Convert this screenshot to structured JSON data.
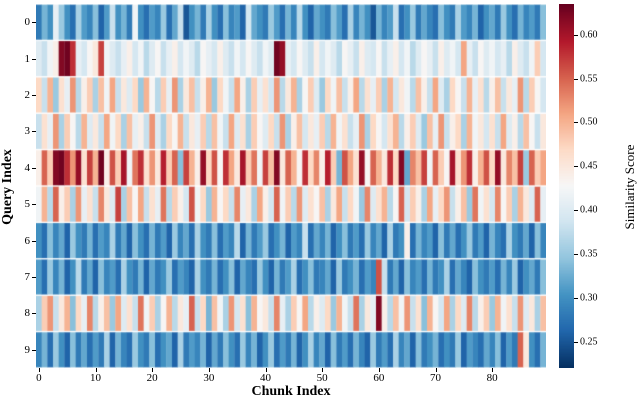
{
  "chart_data": {
    "type": "heatmap",
    "title": "",
    "xlabel": "Chunk Index",
    "ylabel": "Query Index",
    "colorbar_label": "Similarity Score",
    "colormap": "RdBu_r",
    "vmin": 0.22,
    "vmax": 0.635,
    "x_range": [
      0,
      89
    ],
    "y_range": [
      0,
      9
    ],
    "x_ticks": [
      0,
      10,
      20,
      30,
      40,
      50,
      60,
      70,
      80
    ],
    "y_ticks": [
      0,
      1,
      2,
      3,
      4,
      5,
      6,
      7,
      8,
      9
    ],
    "colorbar_ticks": [
      0.6,
      0.55,
      0.5,
      0.45,
      0.4,
      0.35,
      0.3,
      0.25
    ],
    "rows": [
      [
        0.28,
        0.33,
        0.3,
        0.41,
        0.35,
        0.3,
        0.27,
        0.36,
        0.31,
        0.29,
        0.34,
        0.26,
        0.31,
        0.38,
        0.3,
        0.33,
        0.28,
        0.42,
        0.3,
        0.27,
        0.31,
        0.29,
        0.35,
        0.27,
        0.32,
        0.38,
        0.25,
        0.3,
        0.33,
        0.28,
        0.36,
        0.3,
        0.27,
        0.34,
        0.29,
        0.31,
        0.26,
        0.39,
        0.32,
        0.3,
        0.28,
        0.35,
        0.31,
        0.27,
        0.33,
        0.29,
        0.37,
        0.3,
        0.26,
        0.32,
        0.3,
        0.28,
        0.34,
        0.31,
        0.27,
        0.36,
        0.29,
        0.33,
        0.3,
        0.25,
        0.33,
        0.29,
        0.31,
        0.38,
        0.27,
        0.3,
        0.35,
        0.28,
        0.32,
        0.29,
        0.27,
        0.34,
        0.3,
        0.28,
        0.36,
        0.31,
        0.29,
        0.33,
        0.26,
        0.3,
        0.32,
        0.28,
        0.35,
        0.3,
        0.27,
        0.33,
        0.29,
        0.31,
        0.28,
        0.34
      ],
      [
        0.4,
        0.38,
        0.42,
        0.44,
        0.62,
        0.63,
        0.58,
        0.41,
        0.39,
        0.43,
        0.45,
        0.57,
        0.42,
        0.4,
        0.38,
        0.41,
        0.44,
        0.39,
        0.42,
        0.37,
        0.4,
        0.43,
        0.38,
        0.41,
        0.44,
        0.39,
        0.42,
        0.4,
        0.37,
        0.43,
        0.41,
        0.39,
        0.44,
        0.4,
        0.38,
        0.42,
        0.39,
        0.43,
        0.4,
        0.38,
        0.42,
        0.4,
        0.63,
        0.61,
        0.41,
        0.39,
        0.43,
        0.4,
        0.38,
        0.44,
        0.39,
        0.42,
        0.4,
        0.37,
        0.43,
        0.41,
        0.38,
        0.44,
        0.4,
        0.39,
        0.43,
        0.38,
        0.41,
        0.44,
        0.39,
        0.42,
        0.37,
        0.4,
        0.43,
        0.41,
        0.38,
        0.44,
        0.4,
        0.42,
        0.39,
        0.51,
        0.41,
        0.38,
        0.43,
        0.4,
        0.42,
        0.39,
        0.41,
        0.37,
        0.44,
        0.4,
        0.38,
        0.42,
        0.48,
        0.39
      ],
      [
        0.47,
        0.38,
        0.5,
        0.35,
        0.46,
        0.41,
        0.52,
        0.37,
        0.44,
        0.48,
        0.36,
        0.49,
        0.42,
        0.51,
        0.38,
        0.45,
        0.4,
        0.47,
        0.35,
        0.5,
        0.43,
        0.37,
        0.48,
        0.41,
        0.52,
        0.36,
        0.45,
        0.49,
        0.38,
        0.44,
        0.5,
        0.35,
        0.47,
        0.42,
        0.38,
        0.51,
        0.44,
        0.36,
        0.48,
        0.41,
        0.46,
        0.39,
        0.52,
        0.37,
        0.45,
        0.5,
        0.36,
        0.43,
        0.48,
        0.4,
        0.35,
        0.47,
        0.42,
        0.49,
        0.38,
        0.44,
        0.51,
        0.37,
        0.46,
        0.41,
        0.48,
        0.36,
        0.5,
        0.39,
        0.45,
        0.42,
        0.37,
        0.49,
        0.44,
        0.38,
        0.51,
        0.4,
        0.36,
        0.47,
        0.43,
        0.38,
        0.5,
        0.41,
        0.46,
        0.37,
        0.44,
        0.49,
        0.38,
        0.45,
        0.41,
        0.52,
        0.37,
        0.48,
        0.43,
        0.39
      ],
      [
        0.38,
        0.46,
        0.41,
        0.52,
        0.36,
        0.48,
        0.43,
        0.37,
        0.5,
        0.4,
        0.45,
        0.38,
        0.51,
        0.42,
        0.47,
        0.36,
        0.49,
        0.41,
        0.44,
        0.38,
        0.52,
        0.4,
        0.36,
        0.47,
        0.43,
        0.5,
        0.38,
        0.45,
        0.41,
        0.48,
        0.37,
        0.49,
        0.42,
        0.38,
        0.51,
        0.4,
        0.46,
        0.36,
        0.48,
        0.43,
        0.4,
        0.47,
        0.38,
        0.52,
        0.36,
        0.44,
        0.49,
        0.39,
        0.45,
        0.41,
        0.48,
        0.37,
        0.5,
        0.42,
        0.46,
        0.38,
        0.41,
        0.52,
        0.36,
        0.47,
        0.43,
        0.39,
        0.46,
        0.5,
        0.37,
        0.44,
        0.48,
        0.4,
        0.35,
        0.49,
        0.41,
        0.52,
        0.38,
        0.44,
        0.47,
        0.36,
        0.5,
        0.42,
        0.45,
        0.39,
        0.46,
        0.38,
        0.51,
        0.4,
        0.44,
        0.37,
        0.49,
        0.43,
        0.38,
        0.45
      ],
      [
        0.44,
        0.55,
        0.48,
        0.62,
        0.63,
        0.58,
        0.52,
        0.61,
        0.46,
        0.57,
        0.5,
        0.63,
        0.44,
        0.56,
        0.48,
        0.6,
        0.42,
        0.54,
        0.58,
        0.46,
        0.52,
        0.45,
        0.59,
        0.48,
        0.55,
        0.34,
        0.57,
        0.5,
        0.44,
        0.61,
        0.47,
        0.56,
        0.43,
        0.58,
        0.51,
        0.45,
        0.6,
        0.48,
        0.54,
        0.42,
        0.57,
        0.49,
        0.62,
        0.45,
        0.55,
        0.5,
        0.43,
        0.58,
        0.47,
        0.53,
        0.44,
        0.59,
        0.48,
        0.33,
        0.56,
        0.51,
        0.46,
        0.61,
        0.43,
        0.55,
        0.5,
        0.45,
        0.58,
        0.47,
        0.62,
        0.32,
        0.53,
        0.49,
        0.57,
        0.42,
        0.55,
        0.48,
        0.43,
        0.6,
        0.46,
        0.52,
        0.58,
        0.44,
        0.5,
        0.56,
        0.47,
        0.61,
        0.45,
        0.53,
        0.49,
        0.57,
        0.35,
        0.55,
        0.48,
        0.51
      ],
      [
        0.42,
        0.5,
        0.37,
        0.55,
        0.44,
        0.48,
        0.36,
        0.52,
        0.41,
        0.46,
        0.38,
        0.53,
        0.45,
        0.4,
        0.57,
        0.36,
        0.49,
        0.43,
        0.51,
        0.38,
        0.46,
        0.41,
        0.54,
        0.37,
        0.48,
        0.44,
        0.39,
        0.56,
        0.42,
        0.47,
        0.35,
        0.5,
        0.43,
        0.47,
        0.38,
        0.53,
        0.41,
        0.45,
        0.36,
        0.51,
        0.44,
        0.39,
        0.55,
        0.42,
        0.48,
        0.37,
        0.52,
        0.4,
        0.46,
        0.43,
        0.49,
        0.36,
        0.45,
        0.51,
        0.38,
        0.47,
        0.42,
        0.35,
        0.53,
        0.4,
        0.46,
        0.5,
        0.37,
        0.43,
        0.55,
        0.39,
        0.48,
        0.44,
        0.36,
        0.51,
        0.41,
        0.47,
        0.52,
        0.38,
        0.44,
        0.49,
        0.35,
        0.54,
        0.42,
        0.46,
        0.39,
        0.53,
        0.43,
        0.48,
        0.36,
        0.5,
        0.45,
        0.4,
        0.55,
        0.41
      ],
      [
        0.3,
        0.27,
        0.34,
        0.29,
        0.32,
        0.26,
        0.35,
        0.3,
        0.28,
        0.33,
        0.27,
        0.31,
        0.29,
        0.36,
        0.28,
        0.32,
        0.26,
        0.34,
        0.3,
        0.27,
        0.33,
        0.28,
        0.31,
        0.26,
        0.35,
        0.29,
        0.32,
        0.27,
        0.36,
        0.3,
        0.28,
        0.34,
        0.27,
        0.31,
        0.29,
        0.37,
        0.26,
        0.33,
        0.28,
        0.31,
        0.35,
        0.27,
        0.3,
        0.33,
        0.26,
        0.31,
        0.29,
        0.38,
        0.27,
        0.32,
        0.29,
        0.33,
        0.26,
        0.3,
        0.34,
        0.28,
        0.31,
        0.27,
        0.35,
        0.29,
        0.32,
        0.26,
        0.36,
        0.28,
        0.3,
        0.44,
        0.27,
        0.33,
        0.29,
        0.31,
        0.26,
        0.34,
        0.28,
        0.32,
        0.27,
        0.3,
        0.35,
        0.28,
        0.31,
        0.26,
        0.33,
        0.29,
        0.27,
        0.36,
        0.3,
        0.28,
        0.32,
        0.26,
        0.34,
        0.29
      ],
      [
        0.31,
        0.27,
        0.35,
        0.29,
        0.33,
        0.26,
        0.3,
        0.37,
        0.28,
        0.32,
        0.26,
        0.34,
        0.29,
        0.31,
        0.27,
        0.36,
        0.3,
        0.28,
        0.33,
        0.26,
        0.32,
        0.28,
        0.3,
        0.35,
        0.27,
        0.31,
        0.29,
        0.26,
        0.36,
        0.3,
        0.28,
        0.33,
        0.27,
        0.3,
        0.34,
        0.26,
        0.32,
        0.29,
        0.27,
        0.35,
        0.3,
        0.26,
        0.33,
        0.28,
        0.31,
        0.36,
        0.27,
        0.3,
        0.34,
        0.28,
        0.29,
        0.32,
        0.26,
        0.35,
        0.28,
        0.3,
        0.33,
        0.27,
        0.31,
        0.29,
        0.56,
        0.38,
        0.28,
        0.32,
        0.26,
        0.34,
        0.29,
        0.31,
        0.27,
        0.33,
        0.28,
        0.3,
        0.36,
        0.27,
        0.32,
        0.29,
        0.26,
        0.34,
        0.3,
        0.28,
        0.31,
        0.27,
        0.33,
        0.29,
        0.35,
        0.26,
        0.3,
        0.32,
        0.28,
        0.34
      ],
      [
        0.36,
        0.48,
        0.52,
        0.38,
        0.45,
        0.5,
        0.34,
        0.47,
        0.41,
        0.53,
        0.37,
        0.44,
        0.49,
        0.35,
        0.51,
        0.4,
        0.46,
        0.38,
        0.54,
        0.42,
        0.48,
        0.36,
        0.43,
        0.5,
        0.37,
        0.45,
        0.41,
        0.55,
        0.38,
        0.47,
        0.33,
        0.49,
        0.42,
        0.36,
        0.52,
        0.39,
        0.46,
        0.34,
        0.5,
        0.43,
        0.45,
        0.38,
        0.53,
        0.41,
        0.36,
        0.48,
        0.43,
        0.51,
        0.37,
        0.44,
        0.4,
        0.47,
        0.35,
        0.5,
        0.42,
        0.38,
        0.54,
        0.36,
        0.45,
        0.41,
        0.62,
        0.44,
        0.37,
        0.49,
        0.42,
        0.52,
        0.38,
        0.46,
        0.34,
        0.5,
        0.43,
        0.39,
        0.51,
        0.36,
        0.47,
        0.4,
        0.53,
        0.37,
        0.44,
        0.48,
        0.35,
        0.5,
        0.42,
        0.46,
        0.38,
        0.52,
        0.4,
        0.45,
        0.36,
        0.49
      ],
      [
        0.29,
        0.33,
        0.27,
        0.35,
        0.3,
        0.26,
        0.34,
        0.28,
        0.32,
        0.27,
        0.31,
        0.28,
        0.36,
        0.26,
        0.33,
        0.29,
        0.27,
        0.35,
        0.3,
        0.28,
        0.34,
        0.27,
        0.3,
        0.32,
        0.26,
        0.36,
        0.28,
        0.31,
        0.29,
        0.33,
        0.26,
        0.32,
        0.28,
        0.34,
        0.3,
        0.27,
        0.35,
        0.29,
        0.33,
        0.26,
        0.3,
        0.35,
        0.27,
        0.31,
        0.28,
        0.33,
        0.26,
        0.3,
        0.36,
        0.29,
        0.32,
        0.26,
        0.34,
        0.28,
        0.31,
        0.27,
        0.33,
        0.29,
        0.26,
        0.35,
        0.28,
        0.31,
        0.27,
        0.36,
        0.29,
        0.32,
        0.26,
        0.34,
        0.28,
        0.3,
        0.33,
        0.27,
        0.3,
        0.28,
        0.35,
        0.26,
        0.31,
        0.29,
        0.27,
        0.32,
        0.29,
        0.34,
        0.26,
        0.31,
        0.28,
        0.55,
        0.45,
        0.3,
        0.27,
        0.33
      ]
    ]
  }
}
